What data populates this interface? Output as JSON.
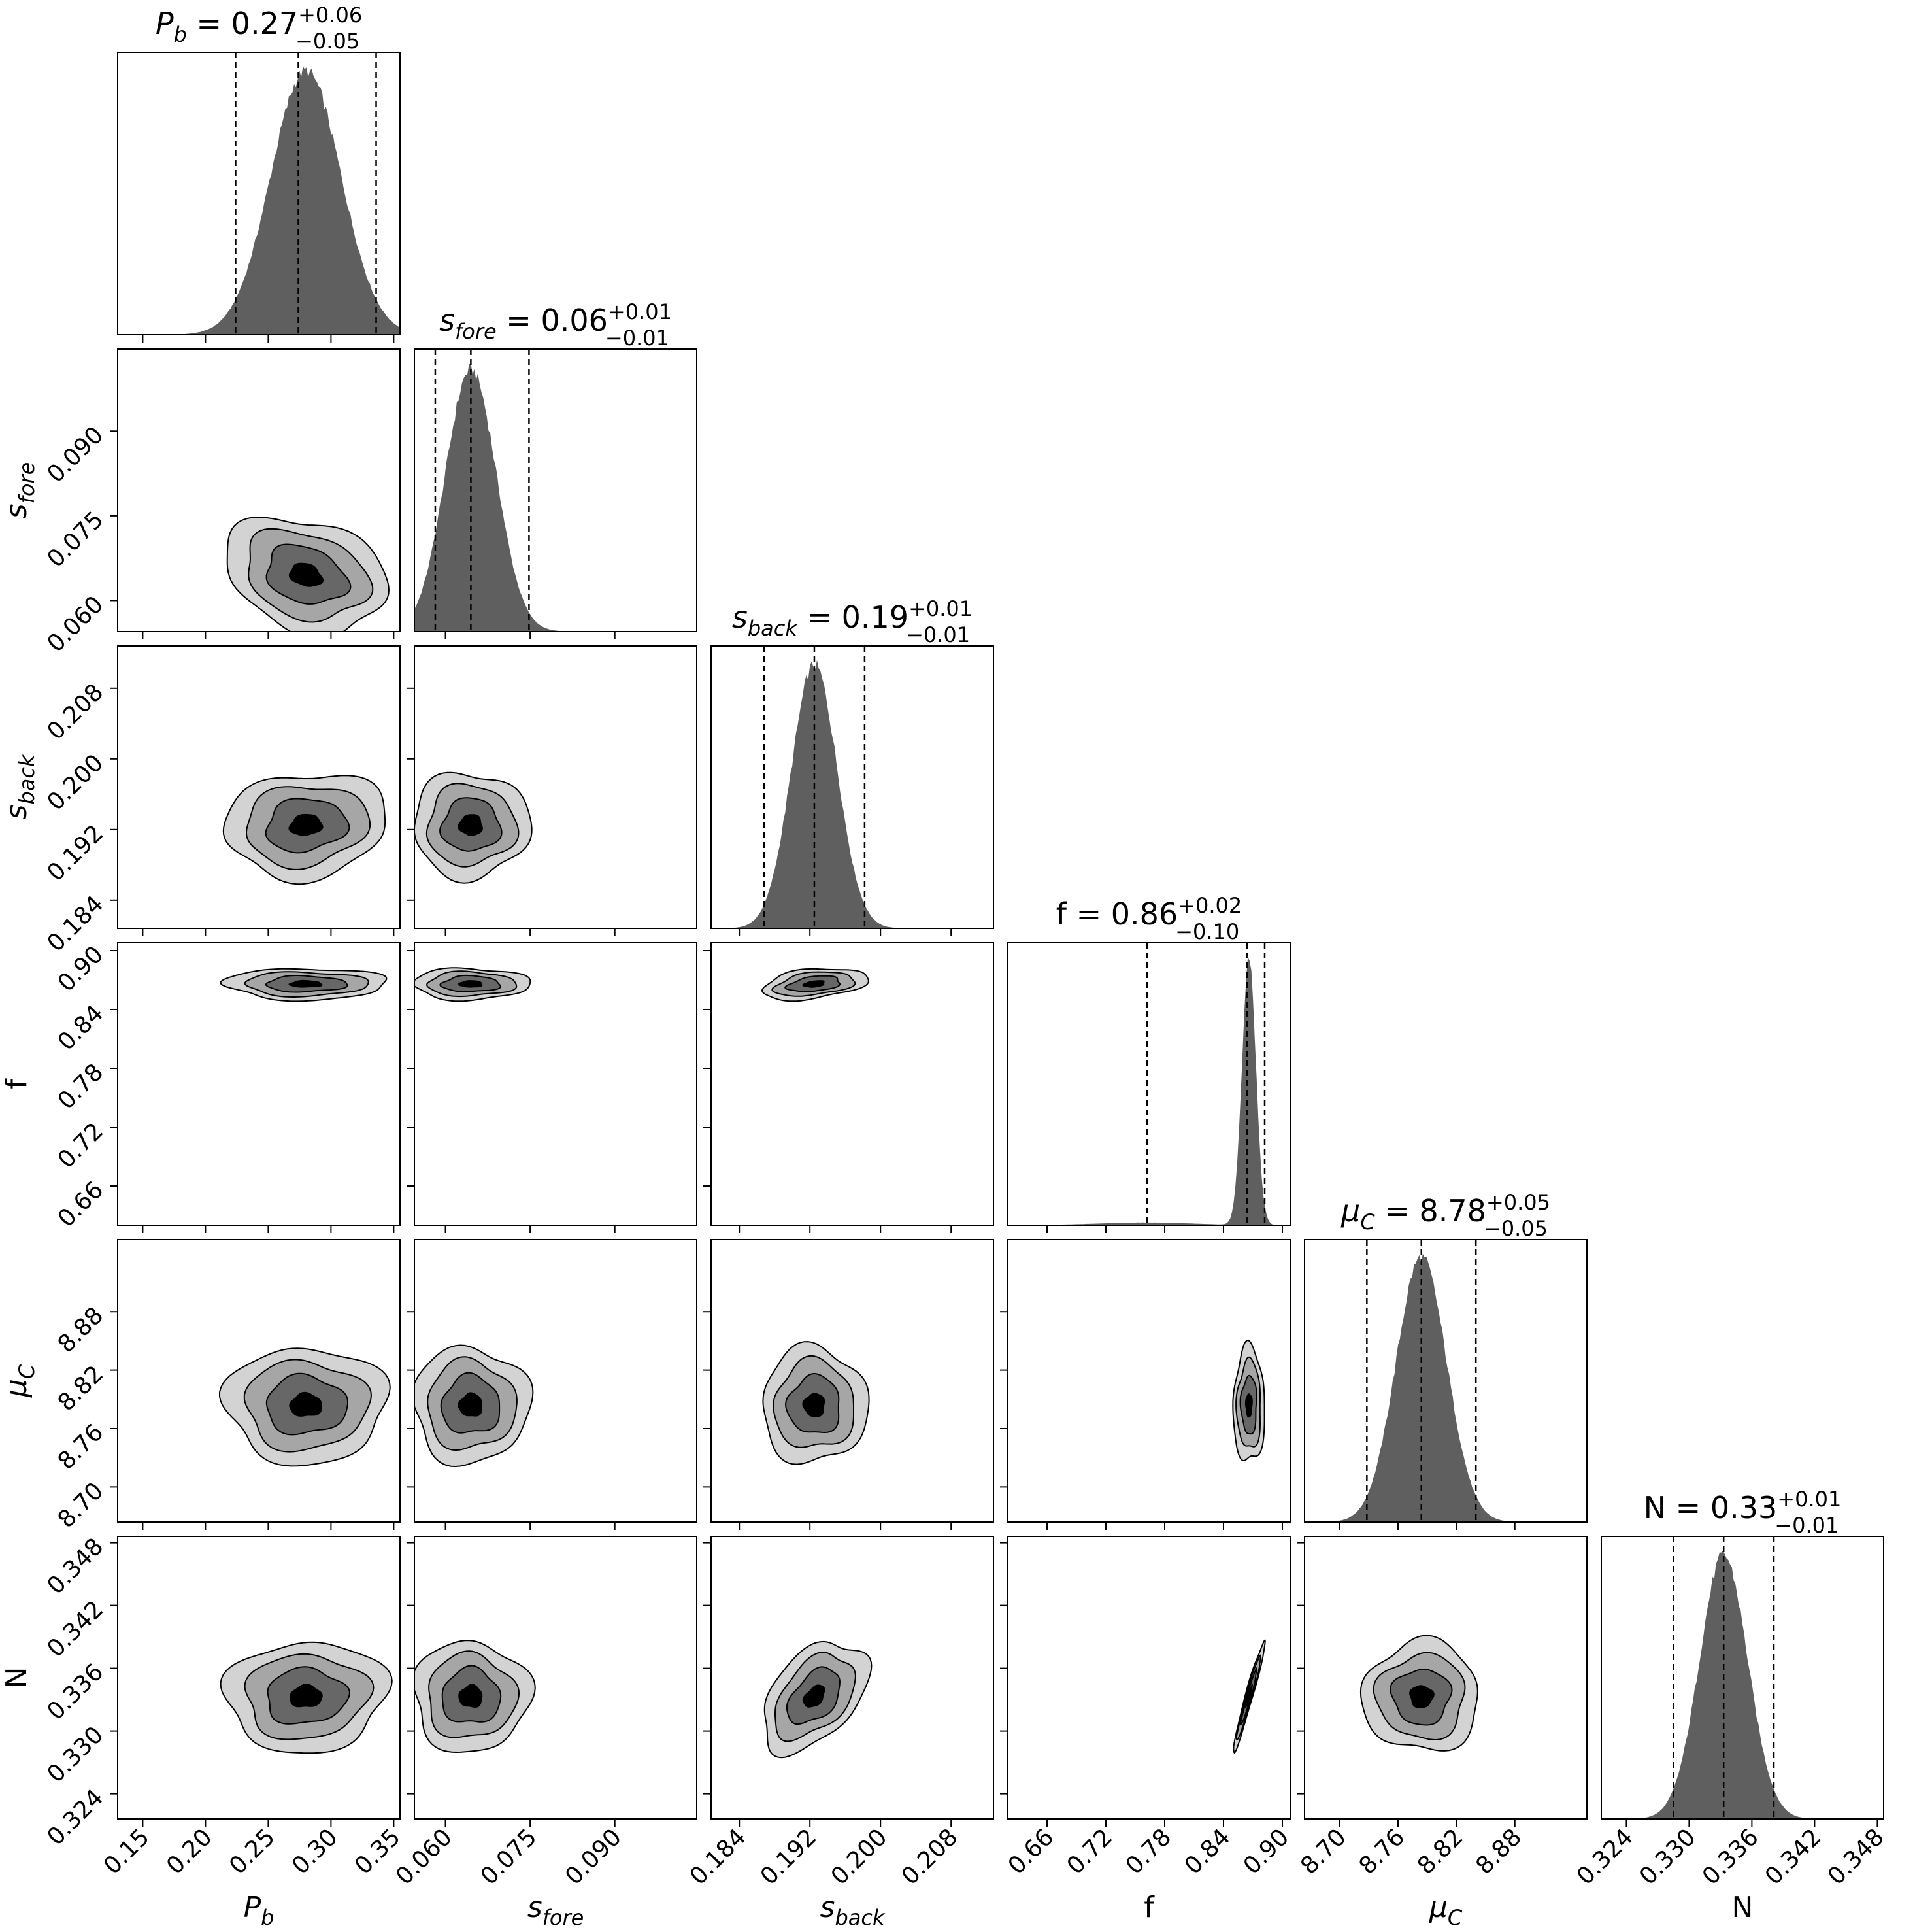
{
  "chart_data": {
    "type": "corner",
    "parameters": [
      {
        "key": "Pb",
        "label": {
          "base": "P",
          "sub": "b"
        },
        "title": {
          "value": "0.27",
          "plus": "+0.06",
          "minus": "−0.05"
        },
        "range": [
          0.13,
          0.355
        ],
        "ticks": [
          "0.15",
          "0.20",
          "0.25",
          "0.30",
          "0.35"
        ],
        "tick_values": [
          0.15,
          0.2,
          0.25,
          0.3,
          0.35
        ],
        "quantiles": [
          0.224,
          0.274,
          0.336
        ],
        "mean": 0.28,
        "sd": 0.028
      },
      {
        "key": "s_fore",
        "label": {
          "base": "s",
          "sub": "fore"
        },
        "title": {
          "value": "0.06",
          "plus": "+0.01",
          "minus": "−0.01"
        },
        "range": [
          0.0545,
          0.1045
        ],
        "ticks": [
          "0.060",
          "0.075",
          "0.090"
        ],
        "tick_values": [
          0.06,
          0.075,
          0.09
        ],
        "quantiles": [
          0.0582,
          0.0645,
          0.0748
        ],
        "mean": 0.0645,
        "sd": 0.0045
      },
      {
        "key": "s_back",
        "label": {
          "base": "s",
          "sub": "back"
        },
        "title": {
          "value": "0.19",
          "plus": "+0.01",
          "minus": "−0.01"
        },
        "range": [
          0.1808,
          0.2128
        ],
        "ticks": [
          "0.184",
          "0.192",
          "0.200",
          "0.208"
        ],
        "tick_values": [
          0.184,
          0.192,
          0.2,
          0.208
        ],
        "quantiles": [
          0.1868,
          0.1925,
          0.1982
        ],
        "mean": 0.1925,
        "sd": 0.0026
      },
      {
        "key": "f",
        "label": {
          "base": "f",
          "sub": ""
        },
        "title": {
          "value": "0.86",
          "plus": "+0.02",
          "minus": "−0.10"
        },
        "range": [
          0.62,
          0.908
        ],
        "ticks": [
          "0.66",
          "0.72",
          "0.78",
          "0.84",
          "0.90"
        ],
        "tick_values": [
          0.66,
          0.72,
          0.78,
          0.84,
          0.9
        ],
        "quantiles": [
          0.762,
          0.864,
          0.882
        ],
        "mean": 0.866,
        "sd": 0.007
      },
      {
        "key": "mu_C",
        "label": {
          "base": "μ",
          "sub": "C"
        },
        "title": {
          "value": "8.78",
          "plus": "+0.05",
          "minus": "−0.05"
        },
        "range": [
          8.664,
          8.954
        ],
        "ticks": [
          "8.70",
          "8.76",
          "8.82",
          "8.88"
        ],
        "tick_values": [
          8.7,
          8.76,
          8.82,
          8.88
        ],
        "quantiles": [
          8.728,
          8.784,
          8.84
        ],
        "mean": 8.784,
        "sd": 0.026
      },
      {
        "key": "N",
        "label": {
          "base": "N",
          "sub": ""
        },
        "title": {
          "value": "0.33",
          "plus": "+0.01",
          "minus": "−0.01"
        },
        "range": [
          0.3216,
          0.3486
        ],
        "ticks": [
          "0.324",
          "0.330",
          "0.336",
          "0.342",
          "0.348"
        ],
        "tick_values": [
          0.324,
          0.33,
          0.336,
          0.342,
          0.348
        ],
        "quantiles": [
          0.3285,
          0.3333,
          0.3381
        ],
        "mean": 0.3333,
        "sd": 0.0023
      }
    ],
    "contours": {
      "levels": [
        "outer",
        "middle",
        "inner",
        "core"
      ],
      "colors": [
        "#d3d3d3",
        "#a6a6a6",
        "#676767",
        "#000000"
      ],
      "edge_color": "#000000"
    },
    "histogram_fill": "#5f5f5f",
    "quantile_line_style": "dashed",
    "grid": false
  }
}
